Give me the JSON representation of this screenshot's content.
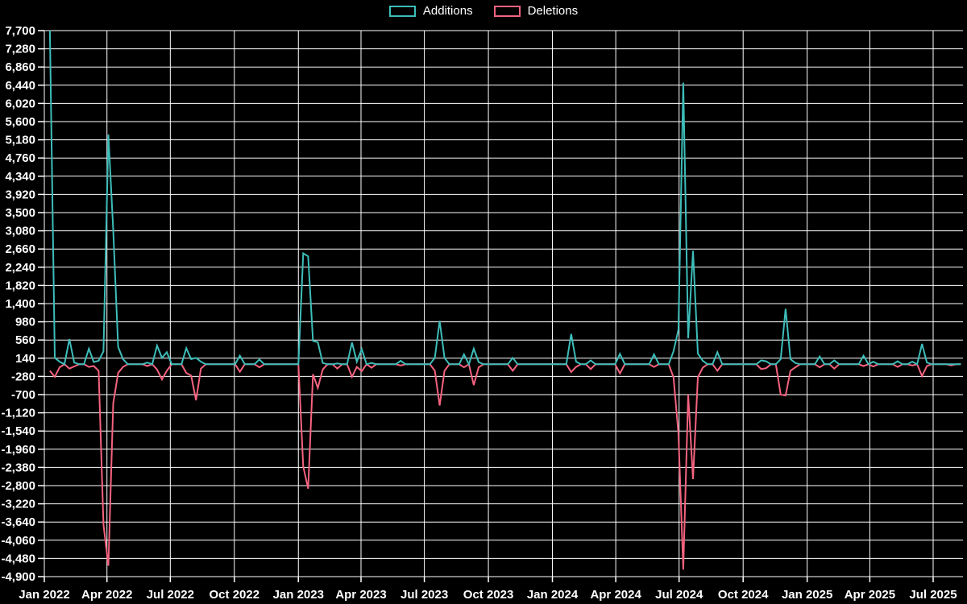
{
  "chart_data": {
    "type": "line",
    "title": "",
    "legend_position": "top-center",
    "grid": true,
    "background_color": "#000000",
    "gridline_color": "#ffffff",
    "text_color": "#ffffff",
    "legend": [
      {
        "name": "Additions",
        "color": "#3dbdb9"
      },
      {
        "name": "Deletions",
        "color": "#f5637f"
      }
    ],
    "x_axis": {
      "label": "",
      "tick_labels": [
        "Jan 2022",
        "Apr 2022",
        "Jul 2022",
        "Oct 2022",
        "Jan 2023",
        "Apr 2023",
        "Jul 2023",
        "Oct 2023",
        "Jan 2024",
        "Apr 2024",
        "Jul 2024",
        "Oct 2024",
        "Jan 2025",
        "Apr 2025",
        "Jul 2025"
      ],
      "tick_interval": "3 months"
    },
    "y_axis": {
      "label": "",
      "max": 7700,
      "min": -4900,
      "step": 420,
      "tick_labels": [
        "7,700",
        "7,280",
        "6,860",
        "6,440",
        "6,020",
        "5,600",
        "5,180",
        "4,760",
        "4,340",
        "3,920",
        "3,500",
        "3,080",
        "2,660",
        "2,240",
        "1,820",
        "1,400",
        "980",
        "560",
        "140",
        "-280",
        "-700",
        "-1,120",
        "-1,540",
        "-1,960",
        "-2,380",
        "-2,800",
        "-3,220",
        "-3,640",
        "-4,060",
        "-4,480",
        "-4,900"
      ]
    },
    "weeks_span": {
      "first": "2022-01-09",
      "last": "2025-08-10",
      "interval_days": 7,
      "default_additions": 0,
      "default_deletions": 0
    },
    "series": [
      {
        "name": "Additions",
        "color": "#3dbdb9",
        "sign": "positive"
      },
      {
        "name": "Deletions",
        "color": "#f5637f",
        "sign": "negative"
      }
    ],
    "points": [
      {
        "week": "2022-01-09",
        "additions": 7700,
        "deletions": -150
      },
      {
        "week": "2022-01-16",
        "additions": 150,
        "deletions": -290
      },
      {
        "week": "2022-01-23",
        "additions": 60,
        "deletions": -70
      },
      {
        "week": "2022-02-06",
        "additions": 580,
        "deletions": -100
      },
      {
        "week": "2022-02-13",
        "additions": 40,
        "deletions": -50
      },
      {
        "week": "2022-03-06",
        "additions": 360,
        "deletions": -60
      },
      {
        "week": "2022-03-13",
        "additions": 50,
        "deletions": -40
      },
      {
        "week": "2022-03-20",
        "additions": 80,
        "deletions": -150
      },
      {
        "week": "2022-03-27",
        "additions": 300,
        "deletions": -3700
      },
      {
        "week": "2022-04-03",
        "additions": 5300,
        "deletions": -4650
      },
      {
        "week": "2022-04-10",
        "additions": 3100,
        "deletions": -900
      },
      {
        "week": "2022-04-17",
        "additions": 400,
        "deletions": -200
      },
      {
        "week": "2022-04-24",
        "additions": 120,
        "deletions": -60
      },
      {
        "week": "2022-05-29",
        "additions": 40,
        "deletions": -40
      },
      {
        "week": "2022-06-12",
        "additions": 430,
        "deletions": -120
      },
      {
        "week": "2022-06-19",
        "additions": 150,
        "deletions": -350
      },
      {
        "week": "2022-06-26",
        "additions": 280,
        "deletions": -150
      },
      {
        "week": "2022-07-24",
        "additions": 370,
        "deletions": -200
      },
      {
        "week": "2022-07-31",
        "additions": 120,
        "deletions": -260
      },
      {
        "week": "2022-08-07",
        "additions": 150,
        "deletions": -830
      },
      {
        "week": "2022-08-14",
        "additions": 60,
        "deletions": -100
      },
      {
        "week": "2022-10-09",
        "additions": 200,
        "deletions": -170
      },
      {
        "week": "2022-11-06",
        "additions": 110,
        "deletions": -70
      },
      {
        "week": "2023-01-08",
        "additions": 2560,
        "deletions": -2360
      },
      {
        "week": "2023-01-15",
        "additions": 2490,
        "deletions": -2870
      },
      {
        "week": "2023-01-22",
        "additions": 540,
        "deletions": -230
      },
      {
        "week": "2023-01-29",
        "additions": 510,
        "deletions": -545
      },
      {
        "week": "2023-02-05",
        "additions": 30,
        "deletions": -120
      },
      {
        "week": "2023-02-26",
        "additions": 20,
        "deletions": -100
      },
      {
        "week": "2023-03-19",
        "additions": 500,
        "deletions": -290
      },
      {
        "week": "2023-03-26",
        "additions": 60,
        "deletions": -60
      },
      {
        "week": "2023-04-02",
        "additions": 350,
        "deletions": -160
      },
      {
        "week": "2023-04-16",
        "additions": 30,
        "deletions": -80
      },
      {
        "week": "2023-05-28",
        "additions": 80,
        "deletions": -30
      },
      {
        "week": "2023-07-16",
        "additions": 150,
        "deletions": -150
      },
      {
        "week": "2023-07-23",
        "additions": 1000,
        "deletions": -950
      },
      {
        "week": "2023-07-30",
        "additions": 150,
        "deletions": -150
      },
      {
        "week": "2023-08-27",
        "additions": 230,
        "deletions": -70
      },
      {
        "week": "2023-09-10",
        "additions": 360,
        "deletions": -480
      },
      {
        "week": "2023-09-17",
        "additions": 50,
        "deletions": -70
      },
      {
        "week": "2023-11-05",
        "additions": 150,
        "deletions": -150
      },
      {
        "week": "2024-01-28",
        "additions": 700,
        "deletions": -180
      },
      {
        "week": "2024-02-04",
        "additions": 60,
        "deletions": -60
      },
      {
        "week": "2024-02-25",
        "additions": 90,
        "deletions": -110
      },
      {
        "week": "2024-04-07",
        "additions": 240,
        "deletions": -210
      },
      {
        "week": "2024-05-26",
        "additions": 230,
        "deletions": -60
      },
      {
        "week": "2024-06-23",
        "additions": 300,
        "deletions": -300
      },
      {
        "week": "2024-06-30",
        "additions": 800,
        "deletions": -1600
      },
      {
        "week": "2024-07-07",
        "additions": 6500,
        "deletions": -4740
      },
      {
        "week": "2024-07-14",
        "additions": 600,
        "deletions": -700
      },
      {
        "week": "2024-07-21",
        "additions": 2620,
        "deletions": -2650
      },
      {
        "week": "2024-07-28",
        "additions": 250,
        "deletions": -300
      },
      {
        "week": "2024-08-04",
        "additions": 80,
        "deletions": -80
      },
      {
        "week": "2024-08-25",
        "additions": 280,
        "deletions": -150
      },
      {
        "week": "2024-10-27",
        "additions": 90,
        "deletions": -110
      },
      {
        "week": "2024-11-03",
        "additions": 70,
        "deletions": -90
      },
      {
        "week": "2024-11-24",
        "additions": 120,
        "deletions": -700
      },
      {
        "week": "2024-12-01",
        "additions": 1280,
        "deletions": -720
      },
      {
        "week": "2024-12-08",
        "additions": 120,
        "deletions": -150
      },
      {
        "week": "2024-12-15",
        "additions": 30,
        "deletions": -70
      },
      {
        "week": "2025-01-19",
        "additions": 180,
        "deletions": -70
      },
      {
        "week": "2025-02-09",
        "additions": 90,
        "deletions": -100
      },
      {
        "week": "2025-03-23",
        "additions": 200,
        "deletions": -40
      },
      {
        "week": "2025-04-06",
        "additions": 60,
        "deletions": -50
      },
      {
        "week": "2025-05-11",
        "additions": 70,
        "deletions": -60
      },
      {
        "week": "2025-06-01",
        "additions": 60,
        "deletions": -30
      },
      {
        "week": "2025-06-15",
        "additions": 470,
        "deletions": -270
      },
      {
        "week": "2025-06-22",
        "additions": 40,
        "deletions": -40
      },
      {
        "week": "2025-07-27",
        "additions": 0,
        "deletions": -25
      }
    ]
  }
}
